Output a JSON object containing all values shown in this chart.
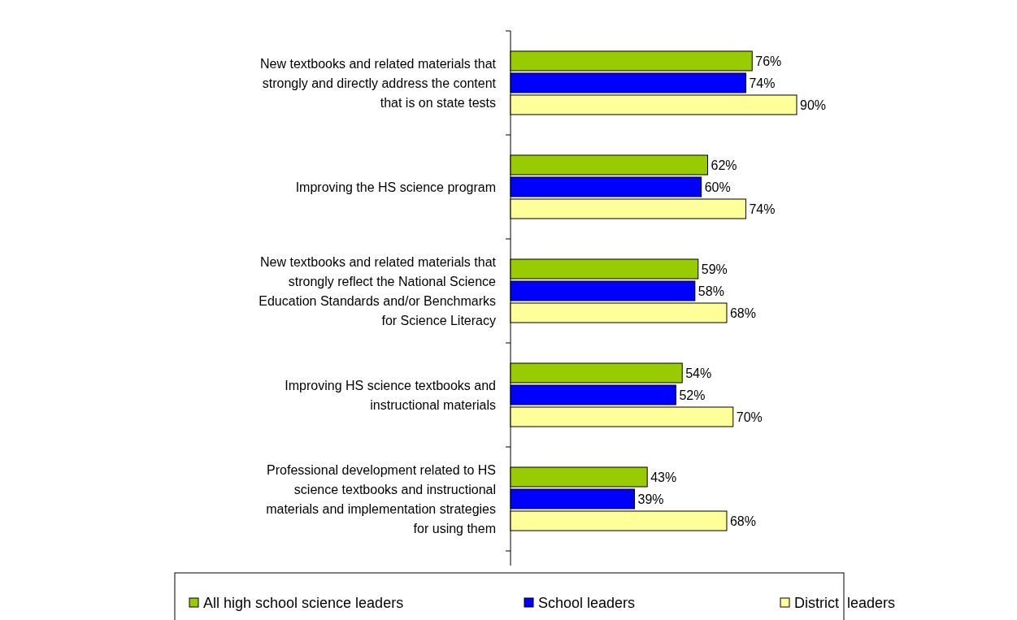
{
  "chart_data": {
    "type": "bar",
    "orientation": "horizontal",
    "categories": [
      "New textbooks and related materials that\nstrongly and directly address the content\nthat is on state tests",
      "Improving the HS science program",
      "New textbooks and related materials that\nstrongly reflect the National Science\nEducation Standards and/or Benchmarks\nfor Science Literacy",
      "Improving HS science textbooks and\ninstructional materials",
      "Professional development related to HS\nscience textbooks and instructional\nmaterials and implementation strategies\nfor using them"
    ],
    "series": [
      {
        "name": "All high school science leaders",
        "color": "#99cc00",
        "values": [
          76,
          62,
          59,
          54,
          43
        ],
        "value_labels": [
          "76%",
          "62%",
          "59%",
          "54%",
          "43%"
        ]
      },
      {
        "name": "School leaders",
        "color": "#0000ff",
        "values": [
          74,
          60,
          58,
          52,
          39
        ],
        "value_labels": [
          "74%",
          "60%",
          "58%",
          "52%",
          "39%"
        ]
      },
      {
        "name": "District  leaders",
        "color": "#ffff99",
        "values": [
          90,
          74,
          68,
          70,
          68
        ],
        "value_labels": [
          "90%",
          "74%",
          "68%",
          "70%",
          "68%"
        ]
      }
    ],
    "tick_labels": "y",
    "legend": "bottom"
  }
}
